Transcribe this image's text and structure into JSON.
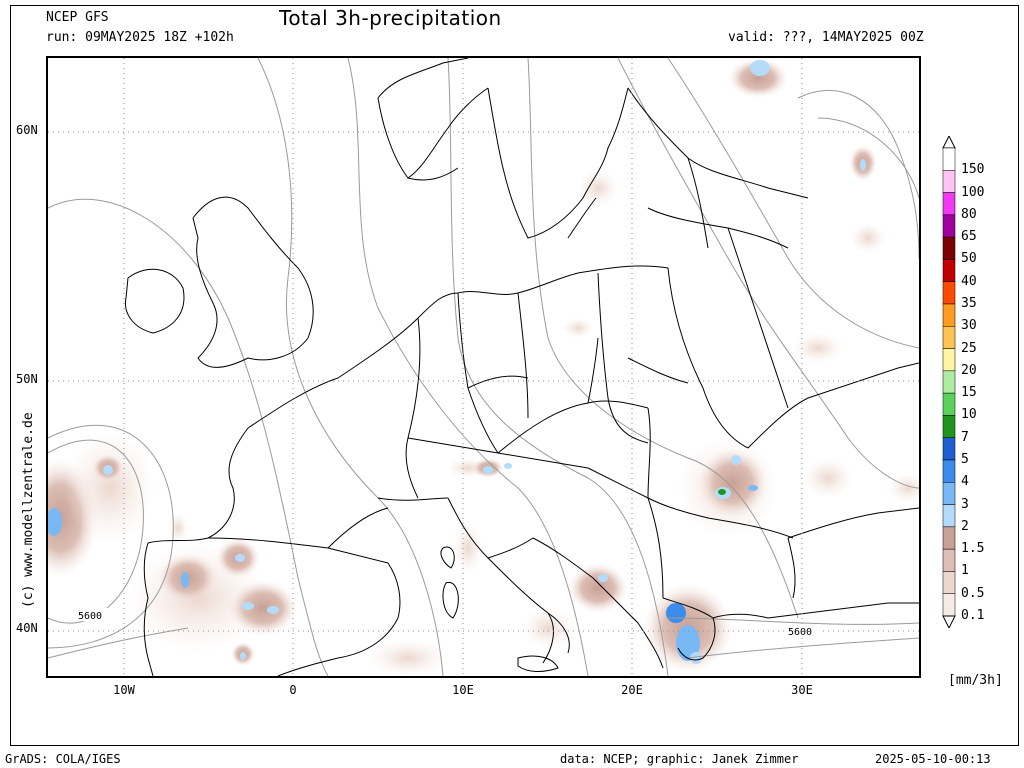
{
  "header": {
    "model": "NCEP GFS",
    "run": "run: 09MAY2025 18Z +102h",
    "title": "Total 3h-precipitation",
    "valid": "valid: ???, 14MAY2025 00Z"
  },
  "map": {
    "lat_labels": [
      "60N",
      "50N",
      "40N"
    ],
    "lon_labels": [
      "10W",
      "0",
      "10E",
      "20E",
      "30E"
    ],
    "contour_labels": [
      "5600",
      "5600"
    ],
    "vertical_credit": "(c) www.modellzentrale.de"
  },
  "legend": {
    "levels": [
      "150",
      "100",
      "80",
      "65",
      "50",
      "40",
      "35",
      "30",
      "25",
      "20",
      "15",
      "10",
      "7",
      "5",
      "4",
      "3",
      "2",
      "1.5",
      "1",
      "0.5",
      "0.1"
    ],
    "colors": [
      "#ffffff",
      "#ffc3f5",
      "#f039f0",
      "#a000a0",
      "#7d0000",
      "#c30000",
      "#ff4b00",
      "#ff9b1e",
      "#ffc350",
      "#fff5a0",
      "#afeba0",
      "#5ad25a",
      "#1e961e",
      "#1e5fd2",
      "#3c8ceb",
      "#78b9f5",
      "#b4dcfa",
      "#c8a096",
      "#dcbeb4",
      "#ebd7cd",
      "#f7ebe6"
    ],
    "unit": "[mm/3h]"
  },
  "footer": {
    "left": "GrADS: COLA/IGES",
    "middle": "data: NCEP; graphic: Janek Zimmer",
    "right": "2025-05-10-00:13"
  }
}
